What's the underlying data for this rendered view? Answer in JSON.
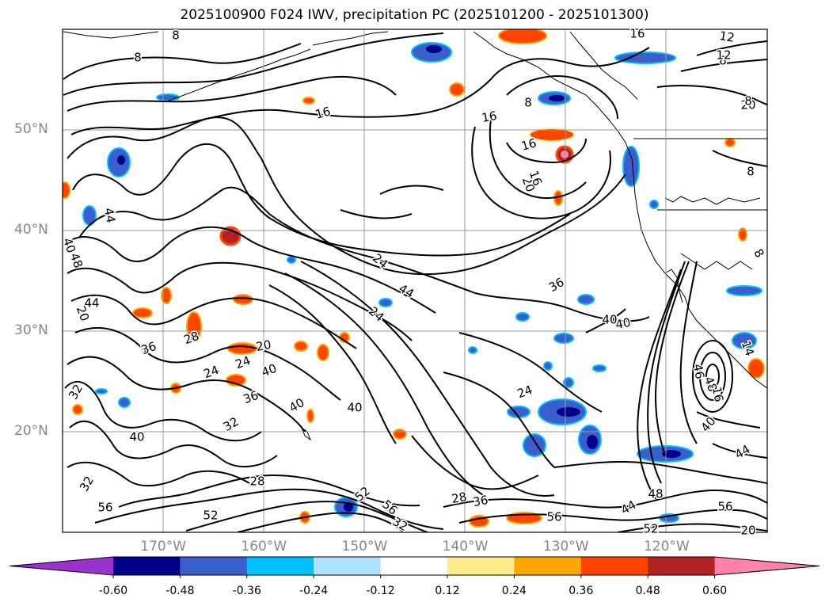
{
  "title": "2025100900 F024 IWV, precipitation PC (2025101200 - 2025101300)",
  "map": {
    "lon_range": [
      -180,
      -110
    ],
    "lat_range": [
      10,
      60
    ],
    "lat_ticks": [
      {
        "value": 50,
        "label": "50°N"
      },
      {
        "value": 40,
        "label": "40°N"
      },
      {
        "value": 30,
        "label": "30°N"
      },
      {
        "value": 20,
        "label": "20°N"
      }
    ],
    "lon_ticks": [
      {
        "value": -170,
        "label": "170°W"
      },
      {
        "value": -160,
        "label": "160°W"
      },
      {
        "value": -150,
        "label": "150°W"
      },
      {
        "value": -140,
        "label": "140°W"
      },
      {
        "value": -130,
        "label": "130°W"
      },
      {
        "value": -120,
        "label": "120°W"
      }
    ],
    "gridline_color": "#999999",
    "contour_label_values": [
      "8",
      "8",
      "16",
      "16",
      "12",
      "8",
      "20",
      "16",
      "16",
      "20",
      "44",
      "40",
      "48",
      "44",
      "20",
      "24",
      "44",
      "24",
      "28",
      "36",
      "24",
      "20",
      "24",
      "40",
      "36",
      "32",
      "40",
      "40",
      "40",
      "32",
      "24",
      "36",
      "40",
      "46",
      "40",
      "44",
      "32",
      "56",
      "52",
      "28",
      "52",
      "56",
      "32",
      "28",
      "36",
      "56",
      "44",
      "48",
      "56",
      "52",
      "20",
      "40",
      "48",
      "8",
      "8",
      "14",
      "16",
      "8",
      "16",
      "12",
      "8"
    ]
  },
  "colorbar": {
    "colors": [
      "#9a32cd",
      "#00008b",
      "#3a5fcd",
      "#00bfff",
      "#b0e2ff",
      "#ffffff",
      "#ffec8b",
      "#ffa500",
      "#ff4500",
      "#b22222",
      "#ff82ab"
    ],
    "tick_labels": [
      "-0.60",
      "-0.48",
      "-0.36",
      "-0.24",
      "-0.12",
      "0.12",
      "0.24",
      "0.36",
      "0.48",
      "0.60"
    ]
  }
}
